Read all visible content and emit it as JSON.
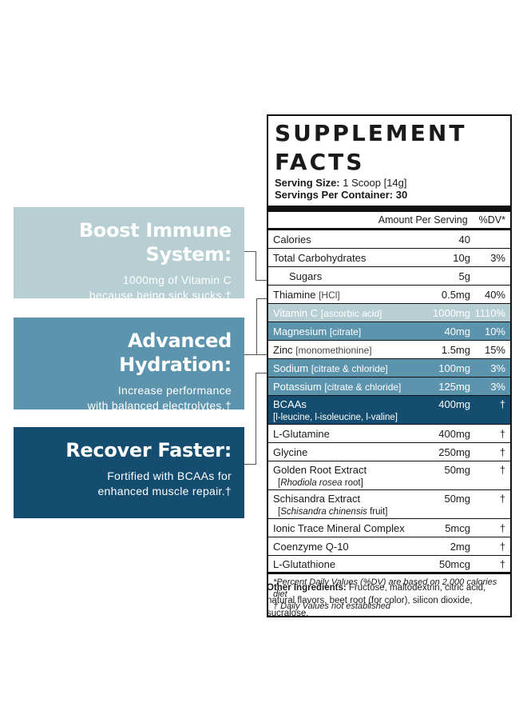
{
  "callouts": [
    {
      "title": "Boost Immune System:",
      "desc1": "1000mg of Vitamin C",
      "desc2": "because being sick sucks.†"
    },
    {
      "title": "Advanced Hydration:",
      "desc1": "Increase performance",
      "desc2": "with balanced electrolytes.†"
    },
    {
      "title": "Recover Faster:",
      "desc1": "Fortified with BCAAs for",
      "desc2": "enhanced muscle repair.†"
    }
  ],
  "facts": {
    "title": "SUPPLEMENT FACTS",
    "serving_size_label": "Serving Size:",
    "serving_size": "1 Scoop [14g]",
    "servings_label": "Servings Per Container:",
    "servings": "30",
    "col_amount": "Amount Per Serving",
    "col_dv": "%DV*",
    "rows": [
      {
        "name": "Calories",
        "sub": "",
        "amount": "40",
        "dv": ""
      },
      {
        "name": "Total Carbohydrates",
        "sub": "",
        "amount": "10g",
        "dv": "3%"
      },
      {
        "name": "Sugars",
        "sub": "",
        "amount": "5g",
        "dv": ""
      },
      {
        "name": "Thiamine",
        "sub": "[HCl]",
        "amount": "0.5mg",
        "dv": "40%"
      },
      {
        "name": "Vitamin C",
        "sub": "[ascorbic acid]",
        "amount": "1000mg",
        "dv": "1110%"
      },
      {
        "name": "Magnesium",
        "sub": "[citrate]",
        "amount": "40mg",
        "dv": "10%"
      },
      {
        "name": "Zinc",
        "sub": "[monomethionine]",
        "amount": "1.5mg",
        "dv": "15%"
      },
      {
        "name": "Sodium",
        "sub": "[citrate & chloride]",
        "amount": "100mg",
        "dv": "3%"
      },
      {
        "name": "Potassium",
        "sub": "[citrate & chloride]",
        "amount": "125mg",
        "dv": "3%"
      },
      {
        "name": "BCAAs",
        "sub": "[l-leucine, l-isoleucine, l-valine]",
        "amount": "400mg",
        "dv": "†"
      },
      {
        "name": "L-Glutamine",
        "sub": "",
        "amount": "400mg",
        "dv": "†"
      },
      {
        "name": "Glycine",
        "sub": "",
        "amount": "250mg",
        "dv": "†"
      },
      {
        "name": "Golden Root Extract",
        "sub_pre": "[",
        "sub_italic": "Rhodiola rosea",
        "sub_post": " root]",
        "amount": "50mg",
        "dv": "†"
      },
      {
        "name": "Schisandra Extract",
        "sub_pre": "[",
        "sub_italic": "Schisandra chinensis",
        "sub_post": " fruit]",
        "amount": "50mg",
        "dv": "†"
      },
      {
        "name": "Ionic Trace Mineral Complex",
        "sub": "",
        "amount": "5mcg",
        "dv": "†"
      },
      {
        "name": "Coenzyme Q-10",
        "sub": "",
        "amount": "2mg",
        "dv": "†"
      },
      {
        "name": "L-Glutathione",
        "sub": "",
        "amount": "50mcg",
        "dv": "†"
      }
    ],
    "foot1": "*Percent Daily Values (%DV) are based on 2,000 calories diet",
    "foot2": "† Daily Values not established"
  },
  "other": {
    "label": "Other Ingredients:",
    "text": " Fructose, maltodextrin, citric acid, natural flavors, beet root (for color), silicon dioxide, sucralose."
  },
  "colors": {
    "light": "#b7cfd2",
    "mid": "#5c93ad",
    "dark": "#144d70"
  }
}
